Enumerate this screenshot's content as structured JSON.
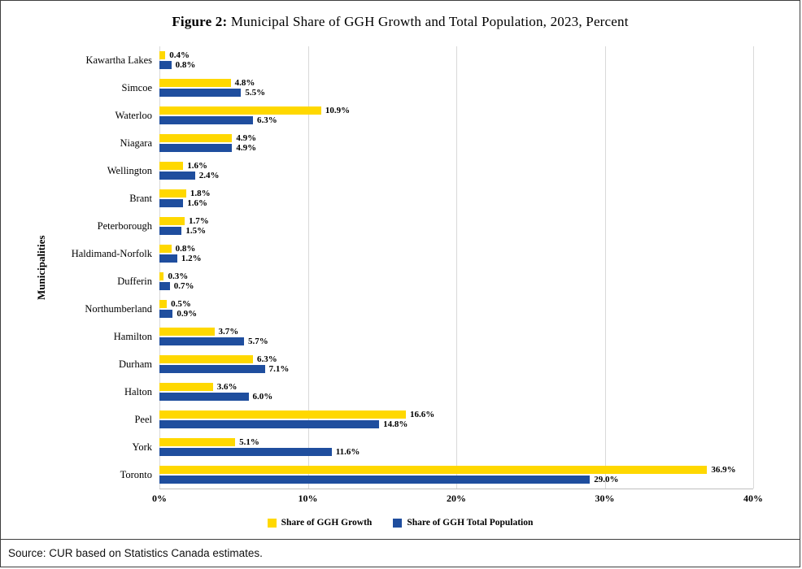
{
  "title": {
    "prefix": "Figure 2:",
    "rest": " Municipal Share of GGH Growth and Total Population, 2023, Percent"
  },
  "source_note": "Source: CUR based on Statistics Canada estimates.",
  "chart_data": {
    "type": "bar",
    "orientation": "horizontal",
    "title": "Figure 2: Municipal Share of GGH Growth and Total Population, 2023, Percent",
    "ylabel": "Municipalities",
    "xlabel": "",
    "xlim": [
      0,
      40
    ],
    "x_ticks": [
      "0%",
      "10%",
      "20%",
      "30%",
      "40%"
    ],
    "grid": true,
    "value_labels": true,
    "legend_position": "bottom",
    "categories": [
      "Kawartha Lakes",
      "Simcoe",
      "Waterloo",
      "Niagara",
      "Wellington",
      "Brant",
      "Peterborough",
      "Haldimand-Norfolk",
      "Dufferin",
      "Northumberland",
      "Hamilton",
      "Durham",
      "Halton",
      "Peel",
      "York",
      "Toronto"
    ],
    "series": [
      {
        "name": "Share of GGH Growth",
        "color": "#FFD800",
        "values": [
          0.4,
          4.8,
          10.9,
          4.9,
          1.6,
          1.8,
          1.7,
          0.8,
          0.3,
          0.5,
          3.7,
          6.3,
          3.6,
          16.6,
          5.1,
          36.9
        ]
      },
      {
        "name": "Share of GGH Total Population",
        "color": "#1F4E9E",
        "values": [
          0.8,
          5.5,
          6.3,
          4.9,
          2.4,
          1.6,
          1.5,
          1.2,
          0.7,
          0.9,
          5.7,
          7.1,
          6.0,
          14.8,
          11.6,
          29.0
        ]
      }
    ]
  }
}
